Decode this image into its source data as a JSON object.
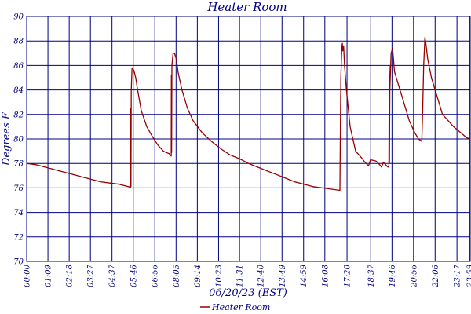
{
  "chart_data": {
    "type": "line",
    "title": "Heater Room",
    "xlabel": "06/20/23 (EST)",
    "ylabel": "Degrees F",
    "ylim": [
      70,
      90
    ],
    "yticks": [
      70,
      72,
      74,
      76,
      78,
      80,
      82,
      84,
      86,
      88,
      90
    ],
    "xlim_hours": [
      0,
      24
    ],
    "xticks": [
      {
        "label": "00:00",
        "hour": 0.0
      },
      {
        "label": "01:09",
        "hour": 1.15
      },
      {
        "label": "02:18",
        "hour": 2.3
      },
      {
        "label": "03:27",
        "hour": 3.45
      },
      {
        "label": "04:37",
        "hour": 4.6167
      },
      {
        "label": "05:46",
        "hour": 5.7667
      },
      {
        "label": "06:56",
        "hour": 6.9333
      },
      {
        "label": "08:05",
        "hour": 8.0833
      },
      {
        "label": "09:14",
        "hour": 9.2333
      },
      {
        "label": "10:23",
        "hour": 10.3833
      },
      {
        "label": "11:31",
        "hour": 11.5167
      },
      {
        "label": "12:40",
        "hour": 12.6667
      },
      {
        "label": "13:49",
        "hour": 13.8167
      },
      {
        "label": "14:59",
        "hour": 14.9833
      },
      {
        "label": "16:08",
        "hour": 16.1333
      },
      {
        "label": "17:20",
        "hour": 17.3333
      },
      {
        "label": "18:37",
        "hour": 18.6167
      },
      {
        "label": "19:46",
        "hour": 19.7667
      },
      {
        "label": "20:56",
        "hour": 20.9333
      },
      {
        "label": "22:06",
        "hour": 22.1
      },
      {
        "label": "23:17",
        "hour": 23.2833
      },
      {
        "label": "23:59",
        "hour": 23.9833
      }
    ],
    "grid": true,
    "legend": "bottom",
    "series": [
      {
        "name": "Heater Room",
        "color": "#990000",
        "points": [
          [
            0.0,
            78.0
          ],
          [
            0.5,
            77.9
          ],
          [
            1.0,
            77.7
          ],
          [
            1.5,
            77.5
          ],
          [
            2.0,
            77.3
          ],
          [
            2.5,
            77.1
          ],
          [
            3.0,
            76.9
          ],
          [
            3.5,
            76.7
          ],
          [
            4.0,
            76.5
          ],
          [
            4.5,
            76.4
          ],
          [
            5.0,
            76.3
          ],
          [
            5.5,
            76.1
          ],
          [
            5.62,
            76.05
          ],
          [
            5.63,
            82.5
          ],
          [
            5.64,
            76.1
          ],
          [
            5.66,
            84.0
          ],
          [
            5.7,
            85.8
          ],
          [
            5.8,
            85.6
          ],
          [
            5.9,
            85.0
          ],
          [
            6.0,
            84.0
          ],
          [
            6.2,
            82.3
          ],
          [
            6.5,
            81.0
          ],
          [
            6.8,
            80.2
          ],
          [
            7.1,
            79.5
          ],
          [
            7.4,
            79.0
          ],
          [
            7.7,
            78.8
          ],
          [
            7.82,
            78.6
          ],
          [
            7.83,
            85.2
          ],
          [
            7.84,
            78.9
          ],
          [
            7.86,
            86.0
          ],
          [
            7.92,
            87.0
          ],
          [
            8.0,
            87.0
          ],
          [
            8.1,
            86.5
          ],
          [
            8.2,
            85.4
          ],
          [
            8.4,
            84.0
          ],
          [
            8.7,
            82.5
          ],
          [
            9.0,
            81.5
          ],
          [
            9.5,
            80.5
          ],
          [
            10.0,
            79.8
          ],
          [
            10.5,
            79.2
          ],
          [
            11.0,
            78.7
          ],
          [
            11.5,
            78.4
          ],
          [
            12.0,
            78.0
          ],
          [
            12.5,
            77.7
          ],
          [
            13.0,
            77.4
          ],
          [
            13.5,
            77.1
          ],
          [
            14.0,
            76.8
          ],
          [
            14.5,
            76.5
          ],
          [
            15.0,
            76.3
          ],
          [
            15.5,
            76.1
          ],
          [
            16.0,
            76.0
          ],
          [
            16.5,
            75.9
          ],
          [
            16.95,
            75.8
          ],
          [
            16.97,
            80.0
          ],
          [
            17.0,
            85.0
          ],
          [
            17.05,
            87.5
          ],
          [
            17.08,
            87.8
          ],
          [
            17.1,
            87.2
          ],
          [
            17.15,
            87.6
          ],
          [
            17.2,
            86.0
          ],
          [
            17.3,
            84.0
          ],
          [
            17.5,
            81.0
          ],
          [
            17.8,
            79.0
          ],
          [
            18.1,
            78.5
          ],
          [
            18.3,
            78.1
          ],
          [
            18.5,
            77.8
          ],
          [
            18.6,
            78.3
          ],
          [
            18.9,
            78.2
          ],
          [
            19.1,
            77.9
          ],
          [
            19.2,
            77.7
          ],
          [
            19.3,
            78.1
          ],
          [
            19.55,
            77.7
          ],
          [
            19.6,
            77.8
          ],
          [
            19.62,
            86.0
          ],
          [
            19.63,
            78.0
          ],
          [
            19.65,
            84.0
          ],
          [
            19.72,
            87.0
          ],
          [
            19.8,
            87.4
          ],
          [
            19.85,
            86.5
          ],
          [
            19.9,
            85.5
          ],
          [
            20.1,
            84.5
          ],
          [
            20.4,
            83.0
          ],
          [
            20.7,
            81.5
          ],
          [
            21.0,
            80.5
          ],
          [
            21.2,
            80.0
          ],
          [
            21.38,
            79.8
          ],
          [
            21.42,
            82.0
          ],
          [
            21.48,
            86.0
          ],
          [
            21.55,
            88.3
          ],
          [
            21.6,
            87.8
          ],
          [
            21.7,
            86.5
          ],
          [
            21.9,
            85.0
          ],
          [
            22.1,
            84.0
          ],
          [
            22.3,
            83.0
          ],
          [
            22.5,
            82.0
          ],
          [
            22.8,
            81.5
          ],
          [
            23.1,
            81.0
          ],
          [
            23.5,
            80.5
          ],
          [
            23.8,
            80.1
          ],
          [
            23.98,
            80.0
          ]
        ]
      }
    ]
  }
}
